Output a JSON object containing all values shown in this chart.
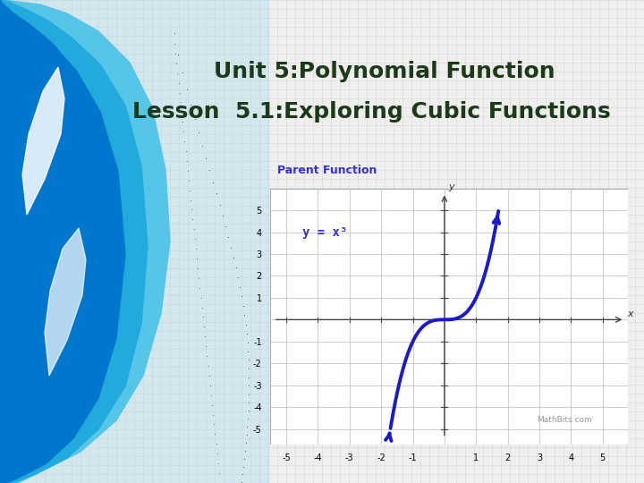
{
  "title_line1": "Unit 5:Polynomial Function",
  "title_line2": "Lesson  5.1:Exploring Cubic Functions",
  "title_color": "#1a3a1a",
  "title_fontsize": 18,
  "bg_color": "#f0eeee",
  "graph_label": "Parent Function",
  "graph_label_color": "#3333cc",
  "equation": "y = x³",
  "equation_color": "#3333cc",
  "curve_color": "#1a1acc",
  "curve_linewidth": 2.8,
  "mathbits_text": "MathBits.com",
  "watermark_color": "#999999"
}
